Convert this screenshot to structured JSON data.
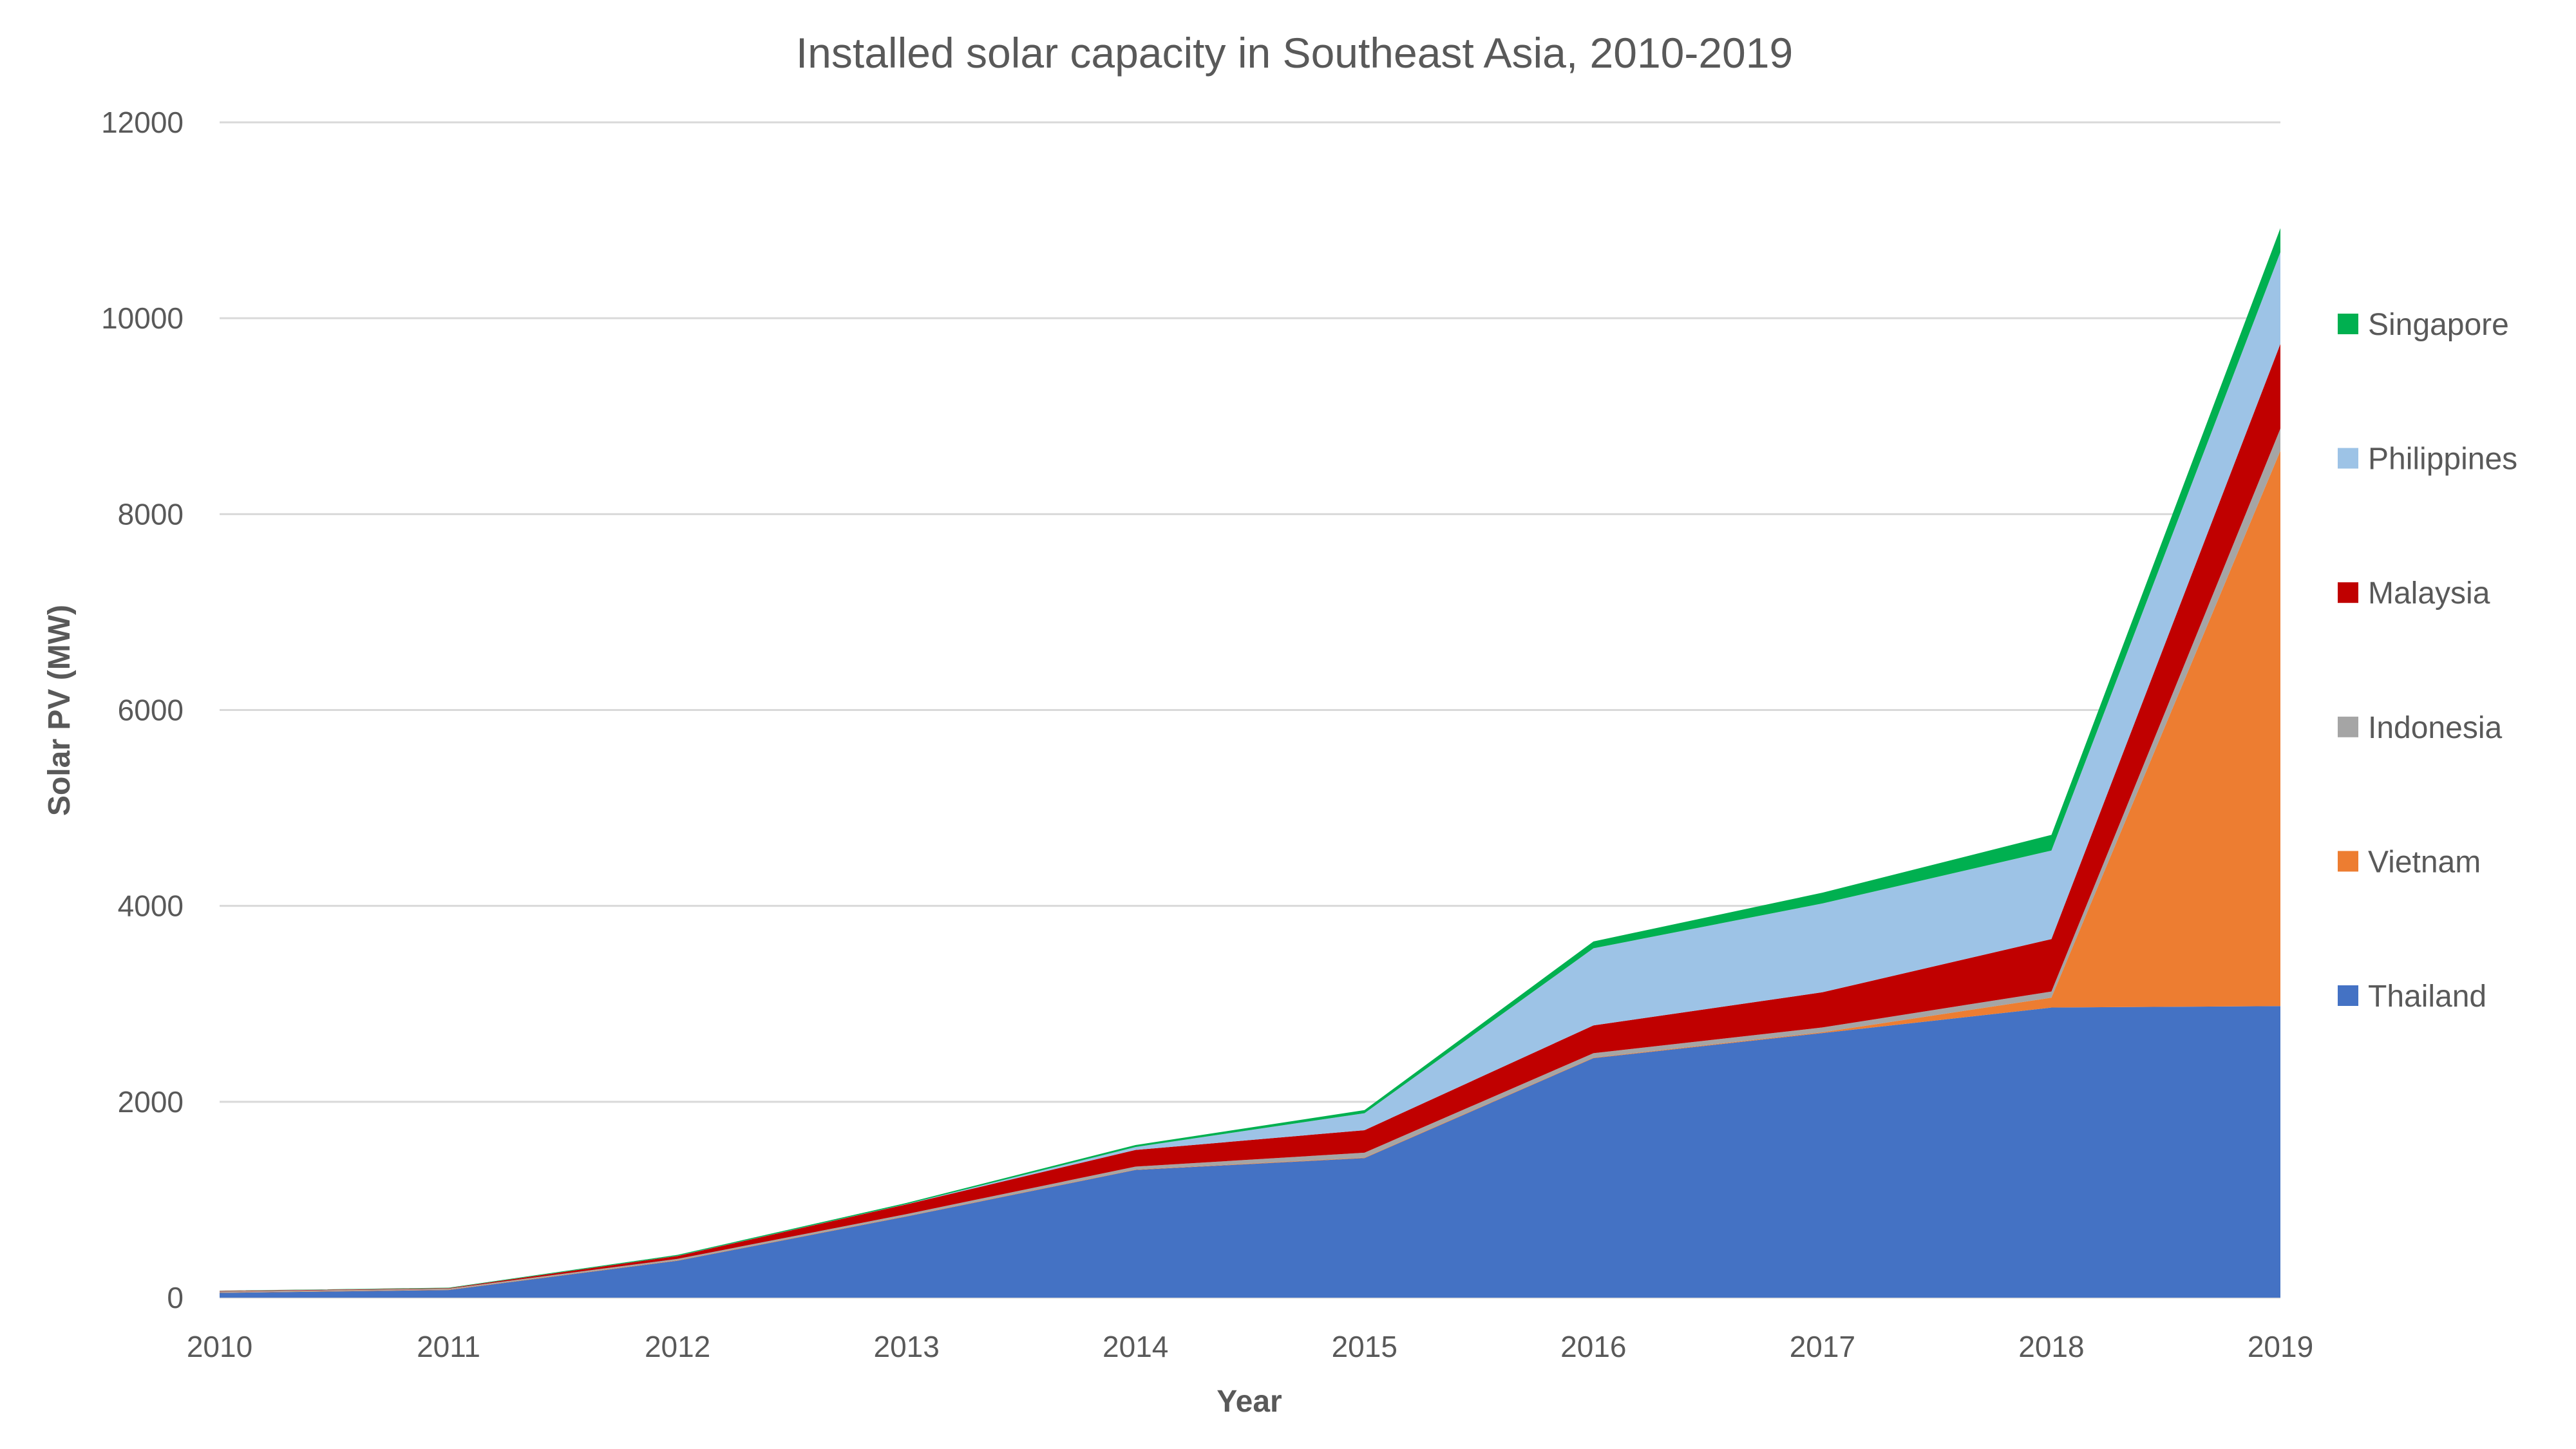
{
  "chart_data": {
    "type": "area",
    "stacked": true,
    "title": "Installed solar capacity in Southeast Asia, 2010-2019",
    "xlabel": "Year",
    "ylabel": "Solar PV (MW)",
    "ylim": [
      0,
      12000
    ],
    "yticks": [
      0,
      2000,
      4000,
      6000,
      8000,
      10000,
      12000
    ],
    "grid": true,
    "legend_position": "right",
    "categories": [
      "2010",
      "2011",
      "2012",
      "2013",
      "2014",
      "2015",
      "2016",
      "2017",
      "2018",
      "2019"
    ],
    "series": [
      {
        "name": "Thailand",
        "color": "#4472C4",
        "values": [
          49,
          78,
          377,
          829,
          1304,
          1425,
          2446,
          2702,
          2962,
          2977
        ]
      },
      {
        "name": "Vietnam",
        "color": "#ED7D31",
        "values": [
          4,
          4,
          4,
          4,
          4,
          5,
          5,
          8,
          101,
          5670
        ]
      },
      {
        "name": "Indonesia",
        "color": "#A5A5A5",
        "values": [
          10,
          10,
          15,
          20,
          30,
          50,
          45,
          49,
          63,
          227
        ]
      },
      {
        "name": "Malaysia",
        "color": "#C00000",
        "values": [
          5,
          5,
          30,
          100,
          170,
          230,
          284,
          359,
          535,
          864
        ]
      },
      {
        "name": "Philippines",
        "color": "#9DC3E6",
        "values": [
          1,
          1,
          1,
          2,
          30,
          173,
          787,
          907,
          904,
          937
        ]
      },
      {
        "name": "Singapore",
        "color": "#00B050",
        "values": [
          2,
          4,
          10,
          12,
          20,
          32,
          70,
          110,
          160,
          245
        ]
      }
    ]
  }
}
